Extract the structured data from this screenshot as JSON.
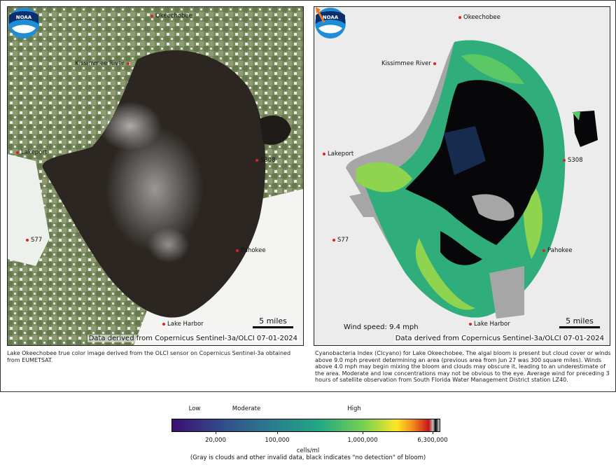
{
  "left_panel": {
    "places": [
      {
        "name": "Okeechobee",
        "side": "right"
      },
      {
        "name": "Kissimmee River",
        "side": "left"
      },
      {
        "name": "Lakeport",
        "side": "right"
      },
      {
        "name": "S308",
        "side": "right"
      },
      {
        "name": "S77",
        "side": "right"
      },
      {
        "name": "Pahokee",
        "side": "right"
      },
      {
        "name": "Lake Harbor",
        "side": "right"
      }
    ],
    "scale_label": "5 miles",
    "source": "Data derived from Copernicus Sentinel-3a/OLCI 07-01-2024",
    "logo_text": "NOAA",
    "caption": "Lake Okeechobee true color image derived from the OLCI sensor on Copernicus Sentinel-3a obtained from EUMETSAT."
  },
  "right_panel": {
    "places": [
      {
        "name": "Okeechobee",
        "side": "right"
      },
      {
        "name": "Kissimmee River",
        "side": "left"
      },
      {
        "name": "Lakeport",
        "side": "right"
      },
      {
        "name": "S308",
        "side": "right"
      },
      {
        "name": "S77",
        "side": "right"
      },
      {
        "name": "Pahokee",
        "side": "right"
      },
      {
        "name": "Lake Harbor",
        "side": "right"
      }
    ],
    "scale_label": "5 miles",
    "wind_text": "Wind speed: 9.4 mph",
    "wind_arrow_color": "#e87a1d",
    "source": "Data derived from Copernicus Sentinel-3a/OLCI 07-01-2024",
    "logo_text": "NOAA",
    "caption": "Cyanobacteria Index (CIcyano) for Lake Okeechobee. The algal bloom is present but cloud cover or winds above 9.0 mph prevent determining an area (previous area from Jun 27 was 300 square miles).  Winds above 4.0 mph may begin mixing the bloom and clouds may obscure it, leading to an underestimate of the area. Moderate and low concentrations may not be obvious to the eye. Average wind for preceding 3 hours of satellite observation from South Florida Water Management District station LZ40."
  },
  "legend": {
    "levels": [
      "Low",
      "Moderate",
      "High"
    ],
    "ticks": [
      "20,000",
      "100,000",
      "1,000,000",
      "6,300,000"
    ],
    "unit": "cells/ml",
    "note": "(Gray is clouds and other invalid data, black indicates \"no detection\" of bloom)",
    "colors": {
      "low": "#3b0f70",
      "moderate": "#2a7e8e",
      "high": "#7ad151",
      "max": "#c7151a",
      "cloud": "#a6a6a6",
      "no_detection": "#000000"
    }
  }
}
